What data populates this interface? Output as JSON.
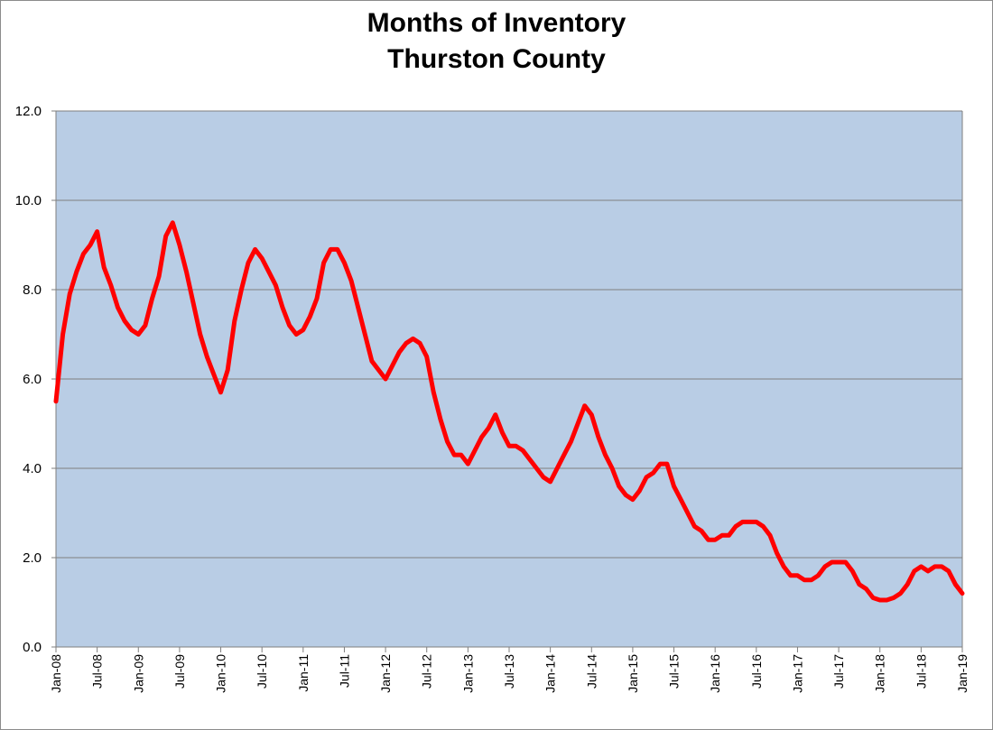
{
  "chart_data": {
    "type": "line",
    "title": [
      "Months of Inventory",
      "Thurston County"
    ],
    "xlabel": "",
    "ylabel": "",
    "ylim": [
      0,
      12
    ],
    "yticks": [
      "0.0",
      "2.0",
      "4.0",
      "6.0",
      "8.0",
      "10.0",
      "12.0"
    ],
    "xrange": [
      "2008-01",
      "2019-01"
    ],
    "xticks": [
      "Jan-08",
      "Jul-08",
      "Jan-09",
      "Jul-09",
      "Jan-10",
      "Jul-10",
      "Jan-11",
      "Jul-11",
      "Jan-12",
      "Jul-12",
      "Jan-13",
      "Jul-13",
      "Jan-14",
      "Jul-14",
      "Jan-15",
      "Jul-15",
      "Jan-16",
      "Jul-16",
      "Jan-17",
      "Jul-17",
      "Jan-18",
      "Jul-18",
      "Jan-19"
    ],
    "grid": "horizontal",
    "colors": {
      "plot_background": "#b9cde5",
      "line": "#ff0000",
      "gridline": "#7f7f7f"
    },
    "series": [
      {
        "points": [
          [
            "2008-01",
            5.5
          ],
          [
            "2008-02",
            7.0
          ],
          [
            "2008-03",
            7.9
          ],
          [
            "2008-04",
            8.4
          ],
          [
            "2008-05",
            8.8
          ],
          [
            "2008-06",
            9.0
          ],
          [
            "2008-07",
            9.3
          ],
          [
            "2008-08",
            8.5
          ],
          [
            "2008-09",
            8.1
          ],
          [
            "2008-10",
            7.6
          ],
          [
            "2008-11",
            7.3
          ],
          [
            "2008-12",
            7.1
          ],
          [
            "2009-01",
            7.0
          ],
          [
            "2009-02",
            7.2
          ],
          [
            "2009-03",
            7.8
          ],
          [
            "2009-04",
            8.3
          ],
          [
            "2009-05",
            9.2
          ],
          [
            "2009-06",
            9.5
          ],
          [
            "2009-07",
            9.0
          ],
          [
            "2009-08",
            8.4
          ],
          [
            "2009-09",
            7.7
          ],
          [
            "2009-10",
            7.0
          ],
          [
            "2009-11",
            6.5
          ],
          [
            "2009-12",
            6.1
          ],
          [
            "2010-01",
            5.7
          ],
          [
            "2010-02",
            6.2
          ],
          [
            "2010-03",
            7.3
          ],
          [
            "2010-04",
            8.0
          ],
          [
            "2010-05",
            8.6
          ],
          [
            "2010-06",
            8.9
          ],
          [
            "2010-07",
            8.7
          ],
          [
            "2010-08",
            8.4
          ],
          [
            "2010-09",
            8.1
          ],
          [
            "2010-10",
            7.6
          ],
          [
            "2010-11",
            7.2
          ],
          [
            "2010-12",
            7.0
          ],
          [
            "2011-01",
            7.1
          ],
          [
            "2011-02",
            7.4
          ],
          [
            "2011-03",
            7.8
          ],
          [
            "2011-04",
            8.6
          ],
          [
            "2011-05",
            8.9
          ],
          [
            "2011-06",
            8.9
          ],
          [
            "2011-07",
            8.6
          ],
          [
            "2011-08",
            8.2
          ],
          [
            "2011-09",
            7.6
          ],
          [
            "2011-10",
            7.0
          ],
          [
            "2011-11",
            6.4
          ],
          [
            "2011-12",
            6.2
          ],
          [
            "2012-01",
            6.0
          ],
          [
            "2012-02",
            6.3
          ],
          [
            "2012-03",
            6.6
          ],
          [
            "2012-04",
            6.8
          ],
          [
            "2012-05",
            6.9
          ],
          [
            "2012-06",
            6.8
          ],
          [
            "2012-07",
            6.5
          ],
          [
            "2012-08",
            5.7
          ],
          [
            "2012-09",
            5.1
          ],
          [
            "2012-10",
            4.6
          ],
          [
            "2012-11",
            4.3
          ],
          [
            "2012-12",
            4.3
          ],
          [
            "2013-01",
            4.1
          ],
          [
            "2013-02",
            4.4
          ],
          [
            "2013-03",
            4.7
          ],
          [
            "2013-04",
            4.9
          ],
          [
            "2013-05",
            5.2
          ],
          [
            "2013-06",
            4.8
          ],
          [
            "2013-07",
            4.5
          ],
          [
            "2013-08",
            4.5
          ],
          [
            "2013-09",
            4.4
          ],
          [
            "2013-10",
            4.2
          ],
          [
            "2013-11",
            4.0
          ],
          [
            "2013-12",
            3.8
          ],
          [
            "2014-01",
            3.7
          ],
          [
            "2014-02",
            4.0
          ],
          [
            "2014-03",
            4.3
          ],
          [
            "2014-04",
            4.6
          ],
          [
            "2014-05",
            5.0
          ],
          [
            "2014-06",
            5.4
          ],
          [
            "2014-07",
            5.2
          ],
          [
            "2014-08",
            4.7
          ],
          [
            "2014-09",
            4.3
          ],
          [
            "2014-10",
            4.0
          ],
          [
            "2014-11",
            3.6
          ],
          [
            "2014-12",
            3.4
          ],
          [
            "2015-01",
            3.3
          ],
          [
            "2015-02",
            3.5
          ],
          [
            "2015-03",
            3.8
          ],
          [
            "2015-04",
            3.9
          ],
          [
            "2015-05",
            4.1
          ],
          [
            "2015-06",
            4.1
          ],
          [
            "2015-07",
            3.6
          ],
          [
            "2015-08",
            3.3
          ],
          [
            "2015-09",
            3.0
          ],
          [
            "2015-10",
            2.7
          ],
          [
            "2015-11",
            2.6
          ],
          [
            "2015-12",
            2.4
          ],
          [
            "2016-01",
            2.4
          ],
          [
            "2016-02",
            2.5
          ],
          [
            "2016-03",
            2.5
          ],
          [
            "2016-04",
            2.7
          ],
          [
            "2016-05",
            2.8
          ],
          [
            "2016-06",
            2.8
          ],
          [
            "2016-07",
            2.8
          ],
          [
            "2016-08",
            2.7
          ],
          [
            "2016-09",
            2.5
          ],
          [
            "2016-10",
            2.1
          ],
          [
            "2016-11",
            1.8
          ],
          [
            "2016-12",
            1.6
          ],
          [
            "2017-01",
            1.6
          ],
          [
            "2017-02",
            1.5
          ],
          [
            "2017-03",
            1.5
          ],
          [
            "2017-04",
            1.6
          ],
          [
            "2017-05",
            1.8
          ],
          [
            "2017-06",
            1.9
          ],
          [
            "2017-07",
            1.9
          ],
          [
            "2017-08",
            1.9
          ],
          [
            "2017-09",
            1.7
          ],
          [
            "2017-10",
            1.4
          ],
          [
            "2017-11",
            1.3
          ],
          [
            "2017-12",
            1.1
          ],
          [
            "2018-01",
            1.05
          ],
          [
            "2018-02",
            1.05
          ],
          [
            "2018-03",
            1.1
          ],
          [
            "2018-04",
            1.2
          ],
          [
            "2018-05",
            1.4
          ],
          [
            "2018-06",
            1.7
          ],
          [
            "2018-07",
            1.8
          ],
          [
            "2018-08",
            1.7
          ],
          [
            "2018-09",
            1.8
          ],
          [
            "2018-10",
            1.8
          ],
          [
            "2018-11",
            1.7
          ],
          [
            "2018-12",
            1.4
          ],
          [
            "2019-01",
            1.2
          ]
        ]
      }
    ]
  }
}
